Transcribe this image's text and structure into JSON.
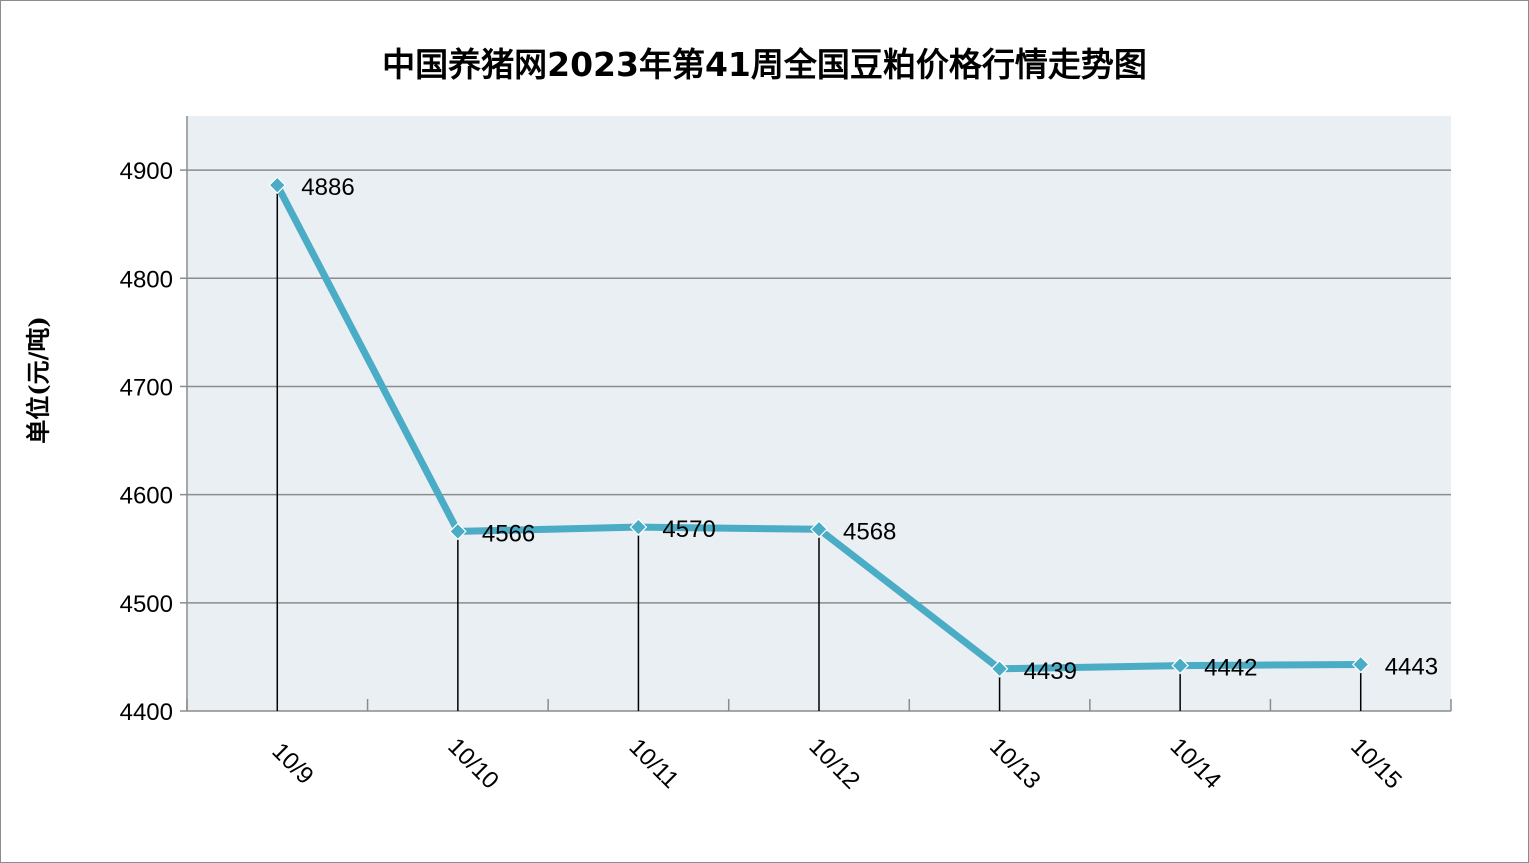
{
  "chart_data": {
    "type": "line",
    "title": "中国养猪网2023年第41周全国豆粕价格行情走势图",
    "ylabel": "单位(元/吨)",
    "xlabel": "",
    "categories": [
      "10/9",
      "10/10",
      "10/11",
      "10/12",
      "10/13",
      "10/14",
      "10/15"
    ],
    "values": [
      4886,
      4566,
      4570,
      4568,
      4439,
      4442,
      4443
    ],
    "ylim": [
      4400,
      4950
    ],
    "yticks": [
      4400,
      4500,
      4600,
      4700,
      4800,
      4900
    ],
    "grid": true,
    "drop_lines": true,
    "line_color": "#4bacc6",
    "plot_bg": "#e9eff3",
    "grid_color": "#8c8c8c"
  }
}
